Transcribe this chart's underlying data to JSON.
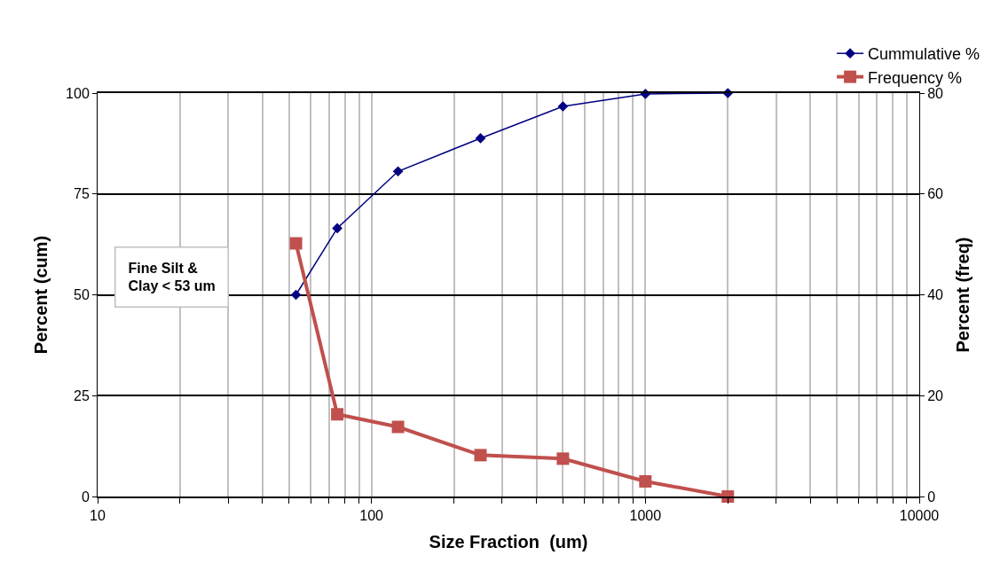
{
  "chart_data": {
    "type": "line",
    "xlabel": "Size Fraction  (um)",
    "ylabel": "Percent (cum)",
    "y2label": "Percent (freq)",
    "x": [
      53,
      75,
      125,
      250,
      500,
      1000,
      2000
    ],
    "series": [
      {
        "name": "Cummulative %",
        "color": "#000080",
        "values": [
          50,
          66.5,
          80.6,
          88.8,
          96.7,
          99.8,
          100
        ],
        "marker": "diamond"
      },
      {
        "name": "Frequency %",
        "color": "#c0504d",
        "values": [
          50.2,
          16.3,
          13.8,
          8.2,
          7.5,
          3.0,
          0
        ],
        "axis": "y2",
        "marker": "square"
      }
    ],
    "log": "x",
    "xlim": [
      10,
      10000
    ],
    "xticks": [
      10,
      {
        "value": 20,
        "label": null
      },
      {
        "value": 30,
        "label": null
      },
      {
        "value": 40,
        "label": null
      },
      {
        "value": 50,
        "label": null
      },
      {
        "value": 60,
        "label": null
      },
      {
        "value": 70,
        "label": null
      },
      {
        "value": 80,
        "label": null
      },
      {
        "value": 90,
        "label": null
      },
      100,
      {
        "value": 200,
        "label": null
      },
      {
        "value": 300,
        "label": null
      },
      {
        "value": 400,
        "label": null
      },
      {
        "value": 500,
        "label": null
      },
      {
        "value": 600,
        "label": null
      },
      {
        "value": 700,
        "label": null
      },
      {
        "value": 800,
        "label": null
      },
      {
        "value": 900,
        "label": null
      },
      1000,
      {
        "value": 2000,
        "label": null
      },
      {
        "value": 3000,
        "label": null
      },
      {
        "value": 4000,
        "label": null
      },
      {
        "value": 5000,
        "label": null
      },
      {
        "value": 6000,
        "label": null
      },
      {
        "value": 7000,
        "label": null
      },
      {
        "value": 8000,
        "label": null
      },
      {
        "value": 9000,
        "label": null
      },
      10000
    ],
    "ylim": [
      0,
      100
    ],
    "yticks": [
      0,
      25,
      50,
      75,
      100
    ],
    "y2lim": [
      0,
      80
    ],
    "y2ticks": [
      0,
      20,
      40,
      60,
      80
    ],
    "grid": true,
    "legend": "top right",
    "annotations": [
      "Fine Silt &\nClay < 53 um"
    ]
  }
}
